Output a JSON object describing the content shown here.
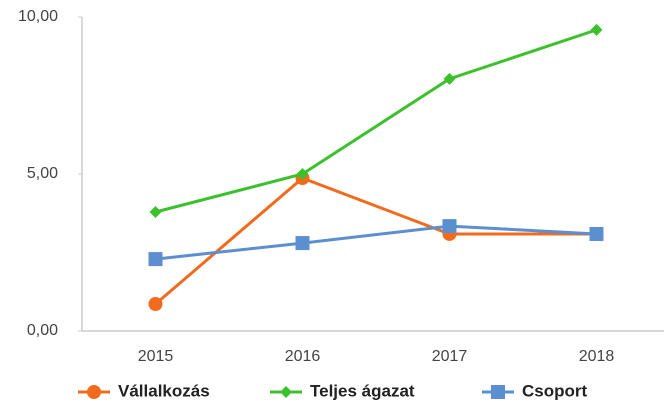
{
  "chart_data": {
    "type": "line",
    "categories": [
      "2015",
      "2016",
      "2017",
      "2018"
    ],
    "series": [
      {
        "name": "Vállalkozás",
        "color": "#f26b1d",
        "marker": "circle",
        "values": [
          0.86,
          4.87,
          3.09,
          3.09
        ]
      },
      {
        "name": "Teljes ágazat",
        "color": "#3cc12c",
        "marker": "diamond",
        "values": [
          3.79,
          5.0,
          8.03,
          9.59
        ]
      },
      {
        "name": "Csoport",
        "color": "#5b8fd0",
        "marker": "square",
        "values": [
          2.29,
          2.8,
          3.34,
          3.09
        ]
      }
    ],
    "ylim": [
      0,
      10
    ],
    "yticks": [
      {
        "value": 0,
        "label": "0,00"
      },
      {
        "value": 5,
        "label": "5,00"
      },
      {
        "value": 10,
        "label": "10,00"
      }
    ],
    "grid": false,
    "legend": "bottom"
  }
}
